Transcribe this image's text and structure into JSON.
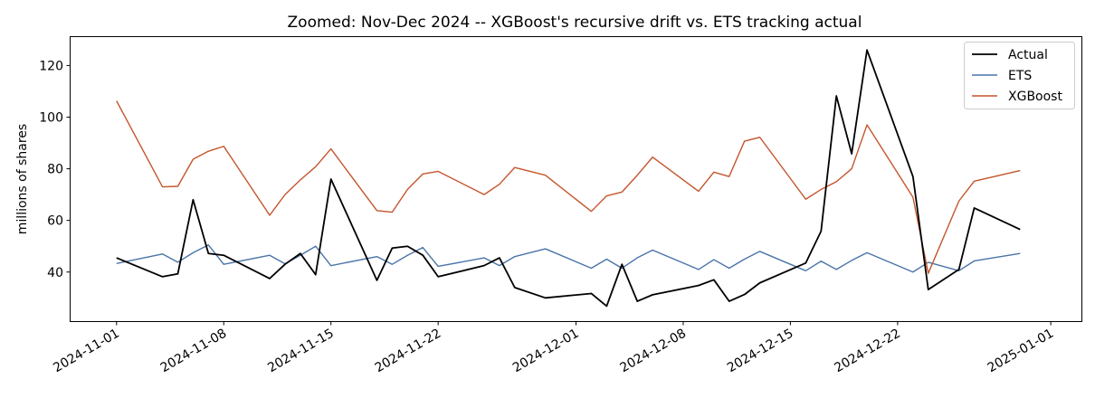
{
  "chart_data": {
    "type": "line",
    "title": "Zoomed: Nov-Dec 2024 -- XGBoost's recursive drift vs. ETS tracking actual",
    "xlabel": "",
    "ylabel": "millions of shares",
    "xlim": [
      "2024-10-29",
      "2025-01-03"
    ],
    "ylim": [
      21,
      131
    ],
    "x_ticks": [
      "2024-11-01",
      "2024-11-08",
      "2024-11-15",
      "2024-11-22",
      "2024-12-01",
      "2024-12-08",
      "2024-12-15",
      "2024-12-22",
      "2025-01-01"
    ],
    "y_ticks": [
      40,
      60,
      80,
      100,
      120
    ],
    "grid": false,
    "legend_position": "top-right",
    "dates": [
      "2024-11-01",
      "2024-11-04",
      "2024-11-05",
      "2024-11-06",
      "2024-11-07",
      "2024-11-08",
      "2024-11-11",
      "2024-11-12",
      "2024-11-13",
      "2024-11-14",
      "2024-11-15",
      "2024-11-18",
      "2024-11-19",
      "2024-11-20",
      "2024-11-21",
      "2024-11-22",
      "2024-11-25",
      "2024-11-26",
      "2024-11-27",
      "2024-11-29",
      "2024-12-02",
      "2024-12-03",
      "2024-12-04",
      "2024-12-05",
      "2024-12-06",
      "2024-12-09",
      "2024-12-10",
      "2024-12-11",
      "2024-12-12",
      "2024-12-13",
      "2024-12-16",
      "2024-12-17",
      "2024-12-18",
      "2024-12-19",
      "2024-12-20",
      "2024-12-23",
      "2024-12-24",
      "2024-12-26",
      "2024-12-27",
      "2024-12-30"
    ],
    "series": [
      {
        "name": "Actual",
        "color": "#000000",
        "values": [
          45.5,
          38.2,
          39.3,
          68.0,
          47.2,
          46.5,
          37.5,
          43.0,
          47.2,
          39.0,
          76.0,
          36.8,
          49.3,
          50.0,
          46.5,
          38.2,
          42.5,
          45.5,
          34.0,
          30.0,
          31.7,
          26.8,
          43.0,
          28.7,
          31.2,
          34.8,
          37.0,
          28.7,
          31.3,
          35.8,
          43.5,
          55.8,
          108.2,
          85.8,
          126.0,
          77.0,
          33.2,
          41.0,
          64.8,
          56.5
        ]
      },
      {
        "name": "ETS",
        "color": "#4a74a8",
        "values": [
          43.3,
          47.0,
          43.8,
          47.5,
          50.5,
          43.0,
          46.5,
          43.2,
          46.5,
          50.0,
          42.5,
          46.0,
          43.0,
          46.5,
          49.5,
          42.2,
          45.5,
          42.5,
          46.0,
          49.0,
          41.5,
          45.0,
          41.5,
          45.5,
          48.5,
          41.0,
          44.8,
          41.5,
          45.0,
          48.0,
          40.5,
          44.2,
          41.0,
          44.5,
          47.5,
          40.0,
          43.8,
          40.5,
          44.3,
          47.2
        ]
      },
      {
        "name": "XGBoost",
        "color": "#c4552d",
        "values": [
          106.3,
          73.0,
          73.2,
          83.7,
          86.8,
          88.7,
          62.0,
          70.0,
          75.7,
          80.8,
          87.7,
          63.8,
          63.2,
          72.0,
          78.0,
          79.0,
          70.0,
          74.0,
          80.5,
          77.5,
          63.5,
          69.5,
          71.0,
          77.5,
          84.5,
          71.3,
          78.7,
          77.0,
          90.7,
          92.2,
          68.2,
          72.0,
          75.0,
          80.0,
          97.0,
          69.0,
          39.5,
          67.5,
          75.2,
          79.3
        ]
      }
    ]
  }
}
